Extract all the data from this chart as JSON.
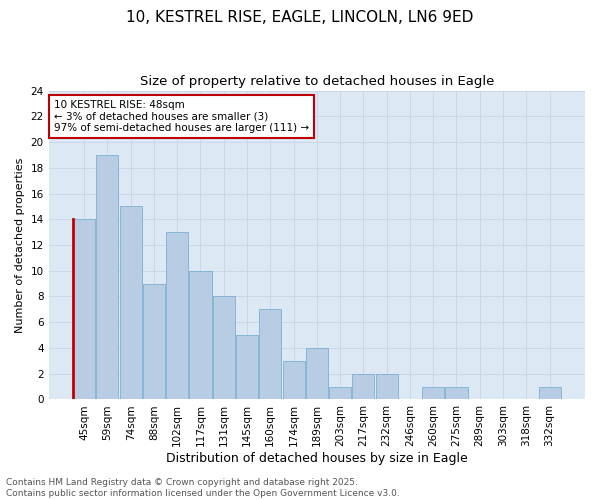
{
  "title1": "10, KESTREL RISE, EAGLE, LINCOLN, LN6 9ED",
  "title2": "Size of property relative to detached houses in Eagle",
  "xlabel": "Distribution of detached houses by size in Eagle",
  "ylabel": "Number of detached properties",
  "categories": [
    "45sqm",
    "59sqm",
    "74sqm",
    "88sqm",
    "102sqm",
    "117sqm",
    "131sqm",
    "145sqm",
    "160sqm",
    "174sqm",
    "189sqm",
    "203sqm",
    "217sqm",
    "232sqm",
    "246sqm",
    "260sqm",
    "275sqm",
    "289sqm",
    "303sqm",
    "318sqm",
    "332sqm"
  ],
  "values": [
    14,
    19,
    15,
    9,
    13,
    10,
    8,
    5,
    7,
    3,
    4,
    1,
    2,
    2,
    0,
    1,
    1,
    0,
    0,
    0,
    1
  ],
  "bar_color": "#b8cce4",
  "bar_edge_color": "#7bafd4",
  "highlight_edge_color": "#c00000",
  "annotation_text": "10 KESTREL RISE: 48sqm\n← 3% of detached houses are smaller (3)\n97% of semi-detached houses are larger (111) →",
  "annotation_box_color": "#ffffff",
  "annotation_box_edge_color": "#c00000",
  "ylim": [
    0,
    24
  ],
  "yticks": [
    0,
    2,
    4,
    6,
    8,
    10,
    12,
    14,
    16,
    18,
    20,
    22,
    24
  ],
  "grid_color": "#c8d8e8",
  "bg_color": "#ffffff",
  "plot_bg_color": "#dce9f5",
  "footer_text": "Contains HM Land Registry data © Crown copyright and database right 2025.\nContains public sector information licensed under the Open Government Licence v3.0.",
  "title1_fontsize": 11,
  "title2_fontsize": 9.5,
  "xlabel_fontsize": 9,
  "ylabel_fontsize": 8,
  "tick_fontsize": 7.5,
  "annotation_fontsize": 7.5,
  "footer_fontsize": 6.5
}
